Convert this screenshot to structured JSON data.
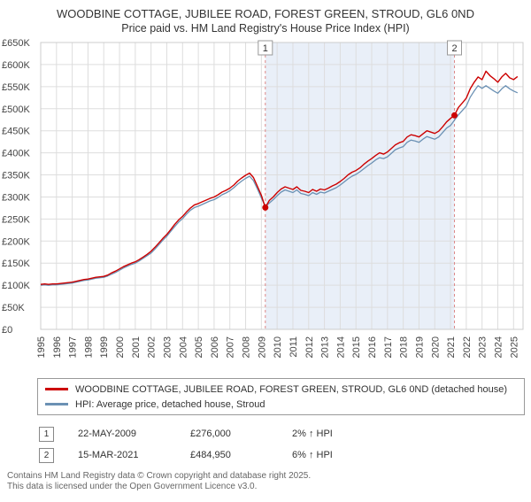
{
  "title": {
    "line1": "WOODBINE COTTAGE, JUBILEE ROAD, FOREST GREEN, STROUD, GL6 0ND",
    "line2": "Price paid vs. HM Land Registry's House Price Index (HPI)"
  },
  "chart_data": {
    "type": "line",
    "x_start": 1995,
    "x_step": 0.25,
    "x_domain": [
      1995,
      2025.6
    ],
    "x_years": [
      1995,
      1996,
      1997,
      1998,
      1999,
      2000,
      2001,
      2002,
      2003,
      2004,
      2005,
      2006,
      2007,
      2008,
      2009,
      2010,
      2011,
      2012,
      2013,
      2014,
      2015,
      2016,
      2017,
      2018,
      2019,
      2020,
      2021,
      2022,
      2023,
      2024,
      2025
    ],
    "ylim": [
      0,
      650
    ],
    "yticks": [
      {
        "v": 0,
        "label": "£0"
      },
      {
        "v": 50,
        "label": "£50K"
      },
      {
        "v": 100,
        "label": "£100K"
      },
      {
        "v": 150,
        "label": "£150K"
      },
      {
        "v": 200,
        "label": "£200K"
      },
      {
        "v": 250,
        "label": "£250K"
      },
      {
        "v": 300,
        "label": "£300K"
      },
      {
        "v": 350,
        "label": "£350K"
      },
      {
        "v": 400,
        "label": "£400K"
      },
      {
        "v": 450,
        "label": "£450K"
      },
      {
        "v": 500,
        "label": "£500K"
      },
      {
        "v": 550,
        "label": "£550K"
      },
      {
        "v": 600,
        "label": "£600K"
      },
      {
        "v": 650,
        "label": "£650K"
      }
    ],
    "unit": "GBP thousands",
    "series": [
      {
        "name": "WOODBINE COTTAGE, JUBILEE ROAD, FOREST GREEN, STROUD, GL6 0ND (detached house)",
        "color": "#cc0000",
        "width": 1.4,
        "values": [
          102,
          103,
          102,
          103,
          103,
          104,
          105,
          106,
          107,
          109,
          111,
          113,
          114,
          116,
          118,
          119,
          120,
          123,
          128,
          132,
          137,
          142,
          146,
          150,
          153,
          158,
          164,
          170,
          177,
          186,
          196,
          206,
          215,
          226,
          238,
          248,
          256,
          266,
          275,
          282,
          285,
          289,
          293,
          297,
          300,
          305,
          311,
          315,
          320,
          327,
          336,
          343,
          349,
          354,
          344,
          324,
          304,
          276,
          292,
          300,
          310,
          318,
          323,
          320,
          317,
          323,
          315,
          313,
          310,
          317,
          313,
          318,
          316,
          320,
          325,
          329,
          335,
          342,
          350,
          356,
          360,
          366,
          374,
          381,
          387,
          394,
          400,
          397,
          402,
          410,
          418,
          423,
          426,
          436,
          441,
          439,
          436,
          443,
          450,
          447,
          444,
          449,
          459,
          470,
          478,
          485,
          503,
          513,
          524,
          545,
          560,
          572,
          566,
          585,
          575,
          568,
          560,
          572,
          580,
          570,
          566,
          573
        ]
      },
      {
        "name": "HPI: Average price, detached house, Stroud",
        "color": "#6b91b4",
        "width": 1.3,
        "values": [
          100,
          101,
          100,
          101,
          101,
          102,
          103,
          104,
          105,
          107,
          109,
          111,
          112,
          114,
          116,
          117,
          118,
          121,
          125,
          129,
          134,
          139,
          143,
          147,
          150,
          155,
          161,
          167,
          173,
          182,
          192,
          202,
          211,
          222,
          233,
          243,
          251,
          261,
          270,
          276,
          279,
          283,
          287,
          291,
          294,
          299,
          305,
          309,
          314,
          321,
          329,
          336,
          342,
          347,
          337,
          318,
          298,
          278,
          286,
          294,
          303,
          311,
          316,
          313,
          310,
          316,
          308,
          306,
          303,
          310,
          306,
          311,
          309,
          313,
          317,
          321,
          327,
          334,
          341,
          347,
          351,
          357,
          364,
          371,
          377,
          384,
          389,
          387,
          391,
          399,
          407,
          411,
          414,
          424,
          429,
          427,
          424,
          431,
          437,
          434,
          431,
          436,
          446,
          456,
          462,
          474,
          486,
          496,
          506,
          526,
          540,
          552,
          546,
          552,
          546,
          540,
          535,
          545,
          552,
          545,
          540,
          536
        ]
      }
    ],
    "shaded_region": [
      2009.25,
      2021.25
    ],
    "markers": [
      {
        "x": 2009.25,
        "y": 276,
        "label": "1"
      },
      {
        "x": 2021.25,
        "y": 484.95,
        "label": "2"
      }
    ],
    "colors": {
      "band": "#e9eff8",
      "grid": "#dddddd",
      "plot_border": "#cccccc",
      "marker_line": "#dd8888",
      "marker_point": "#cc0000",
      "axis_text": "#444444"
    },
    "legend_position": "bottom",
    "grid": true
  },
  "annotations": [
    {
      "num": "1",
      "date": "22-MAY-2009",
      "price": "£276,000",
      "hpi": "2% ↑ HPI"
    },
    {
      "num": "2",
      "date": "15-MAR-2021",
      "price": "£484,950",
      "hpi": "6% ↑ HPI"
    }
  ],
  "footer": {
    "line1": "Contains HM Land Registry data © Crown copyright and database right 2025.",
    "line2": "This data is licensed under the Open Government Licence v3.0."
  }
}
